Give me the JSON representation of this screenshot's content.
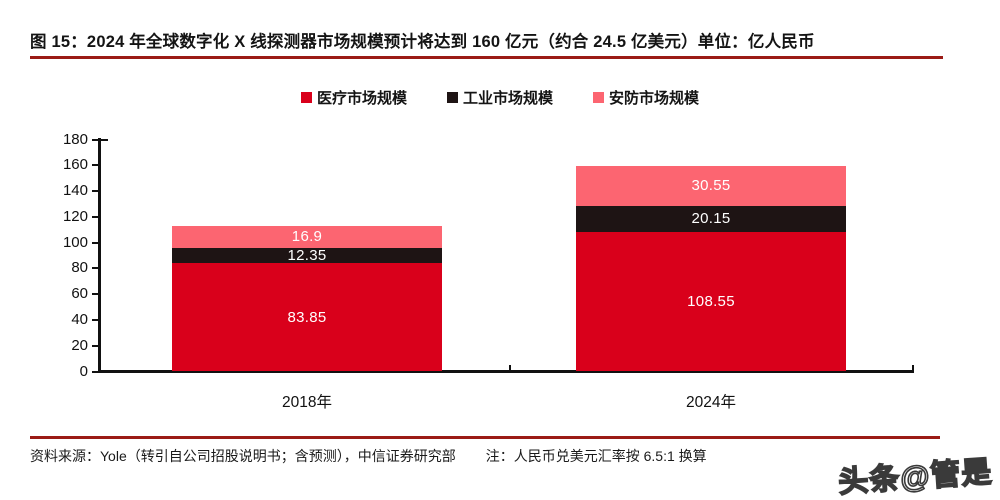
{
  "title": "图 15：2024 年全球数字化 X 线探测器市场规模预计将达到 160 亿元（约合 24.5 亿美元）单位：亿人民币",
  "footer": {
    "source": "资料来源：Yole（转引自公司招股说明书；含预测），中信证券研究部",
    "note": "注：人民币兑美元汇率按 6.5:1 换算"
  },
  "watermark": "头条@管是",
  "colors": {
    "medical_red": "#D9001B",
    "industrial_black": "#1E1414",
    "security_pink": "#FC6571",
    "rule_dark_red": "#9B1B16",
    "axis_black": "#111111",
    "label_white": "#FFFFFF"
  },
  "chart_data": {
    "type": "bar",
    "stacked": true,
    "title": "2024 年全球数字化 X 线探测器市场规模",
    "unit": "亿人民币",
    "categories": [
      "2018年",
      "2024年"
    ],
    "series": [
      {
        "name": "医疗市场规模",
        "key": "medical",
        "color": "#D9001B",
        "values": [
          83.85,
          108.55
        ]
      },
      {
        "name": "工业市场规模",
        "key": "industrial",
        "color": "#1E1414",
        "values": [
          12.35,
          20.15
        ]
      },
      {
        "name": "安防市场规模",
        "key": "security",
        "color": "#FC6571",
        "values": [
          16.9,
          30.55
        ]
      }
    ],
    "totals": [
      113.1,
      159.25
    ],
    "ylim": [
      0,
      180
    ],
    "ytick_step": 20,
    "yticks": [
      0,
      20,
      40,
      60,
      80,
      100,
      120,
      140,
      160,
      180
    ],
    "grid": false,
    "legend_position": "top",
    "bar_value_labels": true
  }
}
